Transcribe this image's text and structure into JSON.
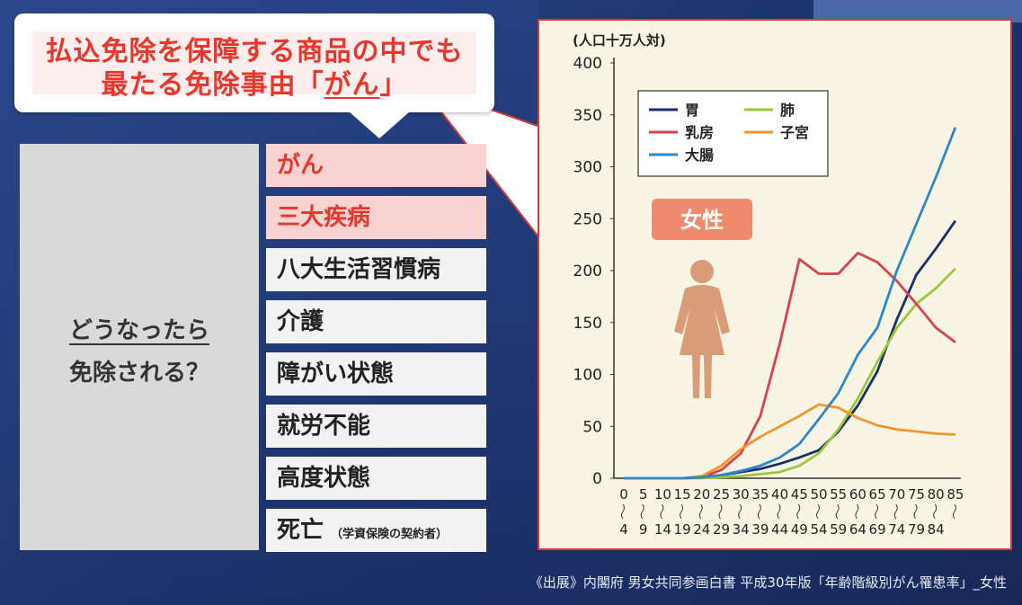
{
  "headline": {
    "line1": "払込免除を保障する商品の中でも",
    "line2_prefix": "最たる免除事由「",
    "line2_emph": "がん",
    "line2_suffix": "」"
  },
  "question": {
    "line1": "どうなったら",
    "line2": "免除される？"
  },
  "items": [
    {
      "label": "がん",
      "highlight": true,
      "note": ""
    },
    {
      "label": "三大疾病",
      "highlight": true,
      "note": ""
    },
    {
      "label": "八大生活習慣病",
      "highlight": false,
      "note": ""
    },
    {
      "label": "介護",
      "highlight": false,
      "note": ""
    },
    {
      "label": "障がい状態",
      "highlight": false,
      "note": ""
    },
    {
      "label": "就労不能",
      "highlight": false,
      "note": ""
    },
    {
      "label": "高度状態",
      "highlight": false,
      "note": ""
    },
    {
      "label": "死亡",
      "highlight": false,
      "note": "（学資保険の契約者）"
    }
  ],
  "source": "《出展》内閣府 男女共同参画白書 平成30年版「年齢階級別がん罹患率」_女性",
  "colors": {
    "accent_red": "#e8372c",
    "highlight_bg": "#f9d2d2",
    "female_badge": "#f08a6c",
    "figure": "#d99b78"
  },
  "chart_data": {
    "type": "line",
    "unit_label": "(人口十万人対)",
    "badge": "女性",
    "ylim": [
      0,
      400
    ],
    "yticks": [
      0,
      50,
      100,
      150,
      200,
      250,
      300,
      350,
      400
    ],
    "x_tick_top": [
      "0",
      "5",
      "10",
      "15",
      "20",
      "25",
      "30",
      "35",
      "40",
      "45",
      "50",
      "55",
      "60",
      "65",
      "70",
      "75",
      "80",
      "85"
    ],
    "x_tick_bottom": [
      "4",
      "9",
      "14",
      "19",
      "24",
      "29",
      "34",
      "39",
      "44",
      "49",
      "54",
      "59",
      "64",
      "69",
      "74",
      "79",
      "84",
      ""
    ],
    "legend_position": "top-left",
    "series": [
      {
        "name": "胃",
        "color": "#1d2f6b",
        "values": [
          0,
          0,
          0,
          0,
          1,
          3,
          6,
          9,
          14,
          20,
          27,
          45,
          70,
          103,
          153,
          196,
          221,
          248
        ]
      },
      {
        "name": "肺",
        "color": "#9cc63c",
        "values": [
          0,
          0,
          0,
          0,
          0,
          1,
          2,
          4,
          6,
          12,
          24,
          47,
          77,
          112,
          145,
          168,
          183,
          202
        ]
      },
      {
        "name": "乳房",
        "color": "#d9424b",
        "values": [
          0,
          0,
          0,
          0,
          1,
          8,
          24,
          60,
          130,
          211,
          197,
          197,
          217,
          208,
          190,
          168,
          145,
          131
        ]
      },
      {
        "name": "子宮",
        "color": "#f0962d",
        "values": [
          0,
          0,
          0,
          0,
          2,
          12,
          28,
          40,
          50,
          60,
          71,
          68,
          58,
          51,
          47,
          45,
          43,
          42
        ]
      },
      {
        "name": "大腸",
        "color": "#2f87c8",
        "values": [
          0,
          0,
          0,
          0,
          1,
          3,
          7,
          12,
          20,
          33,
          57,
          82,
          119,
          145,
          200,
          245,
          290,
          338
        ]
      }
    ]
  }
}
